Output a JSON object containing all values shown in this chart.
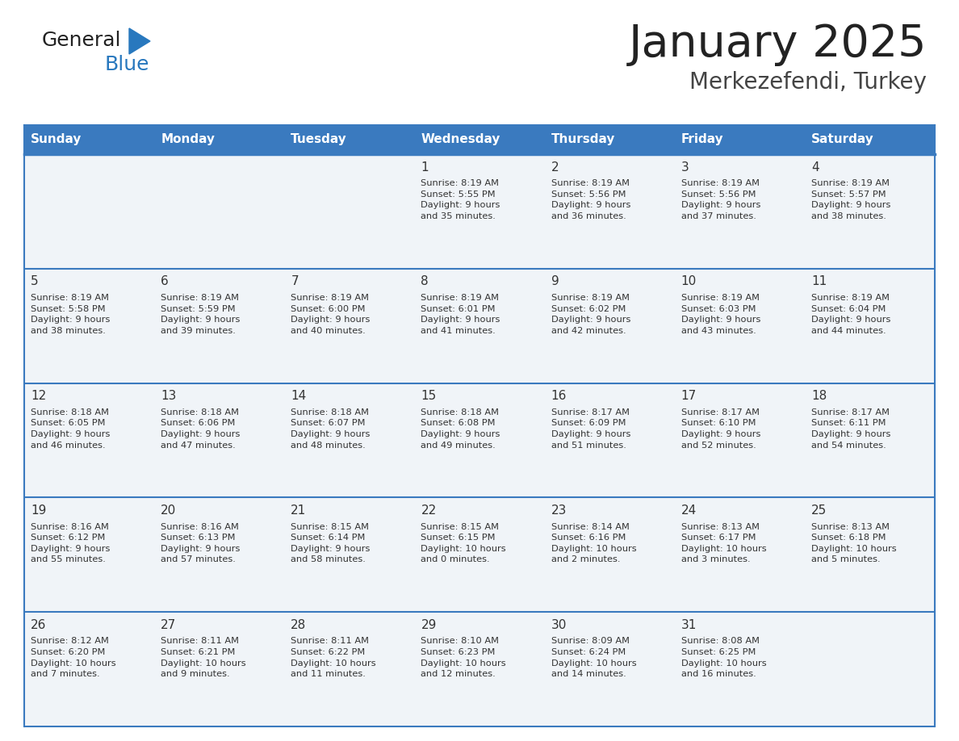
{
  "title": "January 2025",
  "subtitle": "Merkezefendi, Turkey",
  "days_of_week": [
    "Sunday",
    "Monday",
    "Tuesday",
    "Wednesday",
    "Thursday",
    "Friday",
    "Saturday"
  ],
  "header_bg": "#3a7abf",
  "header_text": "#ffffff",
  "row_bg": "#f0f4f8",
  "divider_color": "#3a7abf",
  "text_color": "#333333",
  "day_num_color": "#333333",
  "logo_general_color": "#222222",
  "logo_blue_color": "#2878be",
  "logo_triangle_color": "#2878be",
  "calendar_data": [
    [
      {
        "day": null,
        "info": null
      },
      {
        "day": null,
        "info": null
      },
      {
        "day": null,
        "info": null
      },
      {
        "day": 1,
        "info": "Sunrise: 8:19 AM\nSunset: 5:55 PM\nDaylight: 9 hours\nand 35 minutes."
      },
      {
        "day": 2,
        "info": "Sunrise: 8:19 AM\nSunset: 5:56 PM\nDaylight: 9 hours\nand 36 minutes."
      },
      {
        "day": 3,
        "info": "Sunrise: 8:19 AM\nSunset: 5:56 PM\nDaylight: 9 hours\nand 37 minutes."
      },
      {
        "day": 4,
        "info": "Sunrise: 8:19 AM\nSunset: 5:57 PM\nDaylight: 9 hours\nand 38 minutes."
      }
    ],
    [
      {
        "day": 5,
        "info": "Sunrise: 8:19 AM\nSunset: 5:58 PM\nDaylight: 9 hours\nand 38 minutes."
      },
      {
        "day": 6,
        "info": "Sunrise: 8:19 AM\nSunset: 5:59 PM\nDaylight: 9 hours\nand 39 minutes."
      },
      {
        "day": 7,
        "info": "Sunrise: 8:19 AM\nSunset: 6:00 PM\nDaylight: 9 hours\nand 40 minutes."
      },
      {
        "day": 8,
        "info": "Sunrise: 8:19 AM\nSunset: 6:01 PM\nDaylight: 9 hours\nand 41 minutes."
      },
      {
        "day": 9,
        "info": "Sunrise: 8:19 AM\nSunset: 6:02 PM\nDaylight: 9 hours\nand 42 minutes."
      },
      {
        "day": 10,
        "info": "Sunrise: 8:19 AM\nSunset: 6:03 PM\nDaylight: 9 hours\nand 43 minutes."
      },
      {
        "day": 11,
        "info": "Sunrise: 8:19 AM\nSunset: 6:04 PM\nDaylight: 9 hours\nand 44 minutes."
      }
    ],
    [
      {
        "day": 12,
        "info": "Sunrise: 8:18 AM\nSunset: 6:05 PM\nDaylight: 9 hours\nand 46 minutes."
      },
      {
        "day": 13,
        "info": "Sunrise: 8:18 AM\nSunset: 6:06 PM\nDaylight: 9 hours\nand 47 minutes."
      },
      {
        "day": 14,
        "info": "Sunrise: 8:18 AM\nSunset: 6:07 PM\nDaylight: 9 hours\nand 48 minutes."
      },
      {
        "day": 15,
        "info": "Sunrise: 8:18 AM\nSunset: 6:08 PM\nDaylight: 9 hours\nand 49 minutes."
      },
      {
        "day": 16,
        "info": "Sunrise: 8:17 AM\nSunset: 6:09 PM\nDaylight: 9 hours\nand 51 minutes."
      },
      {
        "day": 17,
        "info": "Sunrise: 8:17 AM\nSunset: 6:10 PM\nDaylight: 9 hours\nand 52 minutes."
      },
      {
        "day": 18,
        "info": "Sunrise: 8:17 AM\nSunset: 6:11 PM\nDaylight: 9 hours\nand 54 minutes."
      }
    ],
    [
      {
        "day": 19,
        "info": "Sunrise: 8:16 AM\nSunset: 6:12 PM\nDaylight: 9 hours\nand 55 minutes."
      },
      {
        "day": 20,
        "info": "Sunrise: 8:16 AM\nSunset: 6:13 PM\nDaylight: 9 hours\nand 57 minutes."
      },
      {
        "day": 21,
        "info": "Sunrise: 8:15 AM\nSunset: 6:14 PM\nDaylight: 9 hours\nand 58 minutes."
      },
      {
        "day": 22,
        "info": "Sunrise: 8:15 AM\nSunset: 6:15 PM\nDaylight: 10 hours\nand 0 minutes."
      },
      {
        "day": 23,
        "info": "Sunrise: 8:14 AM\nSunset: 6:16 PM\nDaylight: 10 hours\nand 2 minutes."
      },
      {
        "day": 24,
        "info": "Sunrise: 8:13 AM\nSunset: 6:17 PM\nDaylight: 10 hours\nand 3 minutes."
      },
      {
        "day": 25,
        "info": "Sunrise: 8:13 AM\nSunset: 6:18 PM\nDaylight: 10 hours\nand 5 minutes."
      }
    ],
    [
      {
        "day": 26,
        "info": "Sunrise: 8:12 AM\nSunset: 6:20 PM\nDaylight: 10 hours\nand 7 minutes."
      },
      {
        "day": 27,
        "info": "Sunrise: 8:11 AM\nSunset: 6:21 PM\nDaylight: 10 hours\nand 9 minutes."
      },
      {
        "day": 28,
        "info": "Sunrise: 8:11 AM\nSunset: 6:22 PM\nDaylight: 10 hours\nand 11 minutes."
      },
      {
        "day": 29,
        "info": "Sunrise: 8:10 AM\nSunset: 6:23 PM\nDaylight: 10 hours\nand 12 minutes."
      },
      {
        "day": 30,
        "info": "Sunrise: 8:09 AM\nSunset: 6:24 PM\nDaylight: 10 hours\nand 14 minutes."
      },
      {
        "day": 31,
        "info": "Sunrise: 8:08 AM\nSunset: 6:25 PM\nDaylight: 10 hours\nand 16 minutes."
      },
      {
        "day": null,
        "info": null
      }
    ]
  ]
}
